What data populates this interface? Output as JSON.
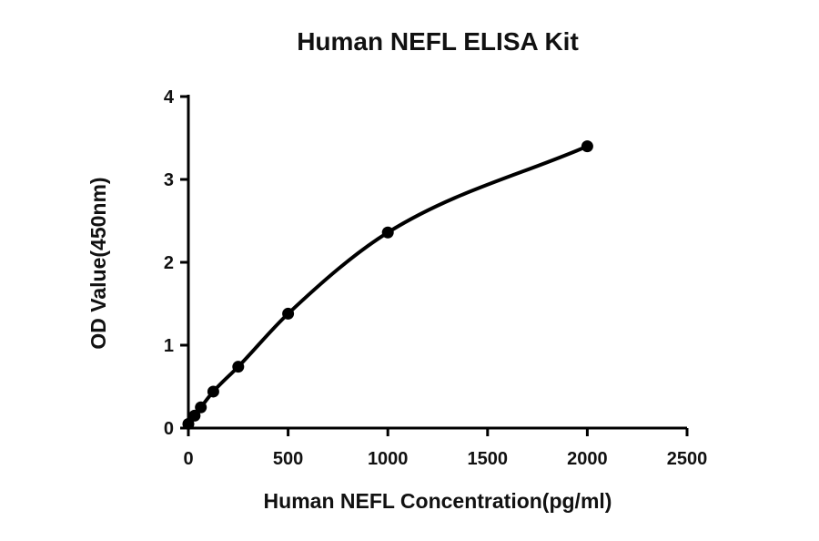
{
  "chart_data": {
    "type": "scatter",
    "title": "Human NEFL ELISA Kit",
    "xlabel": "Human NEFL Concentration(pg/ml)",
    "ylabel": "OD Value(450nm)",
    "xlim": [
      0,
      2500
    ],
    "ylim": [
      0,
      4
    ],
    "xticks": [
      0,
      500,
      1000,
      1500,
      2000,
      2500
    ],
    "yticks": [
      0,
      1,
      2,
      3,
      4
    ],
    "grid": false,
    "fit": "smooth standard curve",
    "series": [
      {
        "x": [
          0,
          31.25,
          62.5,
          125,
          250,
          500,
          1000,
          2000
        ],
        "y": [
          0.05,
          0.15,
          0.25,
          0.44,
          0.74,
          1.38,
          2.36,
          3.4
        ]
      }
    ],
    "colors": {
      "points": "#000000",
      "curve": "#000000",
      "axes": "#000000"
    }
  }
}
